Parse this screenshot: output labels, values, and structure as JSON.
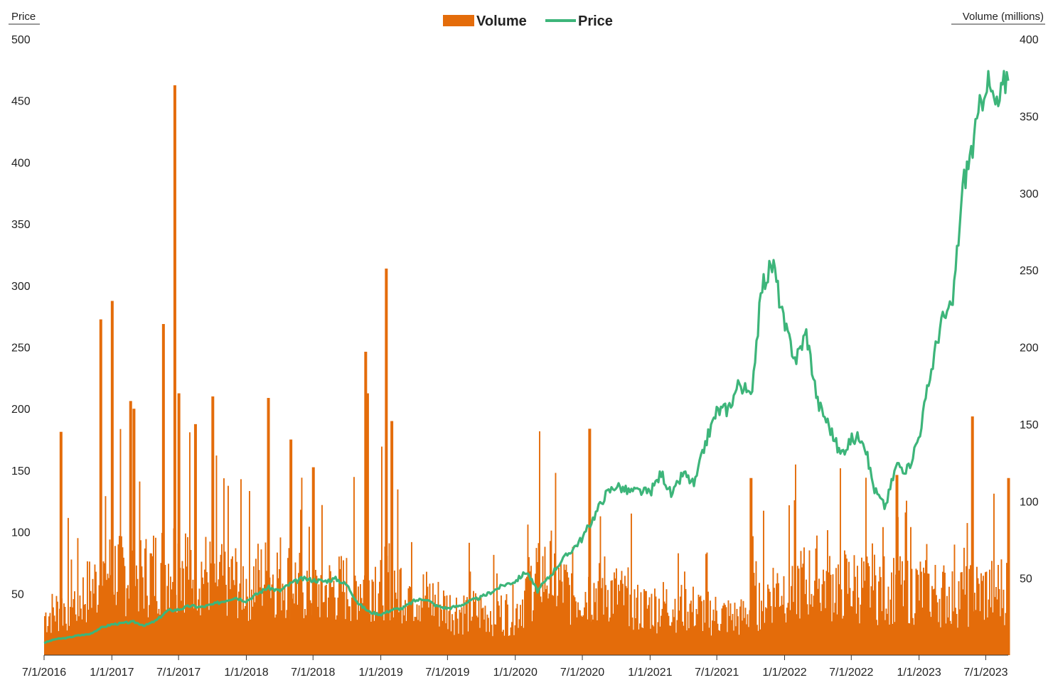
{
  "chart_data": {
    "type": "bar+line",
    "title": "",
    "legend": {
      "placement": "top-center",
      "entries": [
        {
          "name": "Volume",
          "color": "#e46c0a",
          "kind": "bar"
        },
        {
          "name": "Price",
          "color": "#3db57a",
          "kind": "line"
        }
      ]
    },
    "y_left": {
      "label": "Price",
      "ticks": [
        "50",
        "100",
        "150",
        "200",
        "250",
        "300",
        "350",
        "400",
        "450",
        "500"
      ],
      "range": [
        0,
        500
      ]
    },
    "y_right": {
      "label": "Volume (millions)",
      "ticks": [
        "50",
        "100",
        "150",
        "200",
        "250",
        "300",
        "350",
        "400"
      ],
      "range": [
        0,
        400
      ]
    },
    "x_axis": {
      "ticks": [
        "7/1/2016",
        "1/1/2017",
        "7/1/2017",
        "1/1/2018",
        "7/1/2018",
        "1/1/2019",
        "7/1/2019",
        "1/1/2020",
        "7/1/2020",
        "1/1/2021",
        "7/1/2021",
        "1/1/2022",
        "7/1/2022",
        "1/1/2023",
        "7/1/2023"
      ],
      "range": [
        "2016-07-01",
        "2023-08-31"
      ]
    },
    "grid": false,
    "series": [
      {
        "name": "Price",
        "axis": "left",
        "points": [
          [
            "2016-07-01",
            10
          ],
          [
            "2016-08-01",
            13
          ],
          [
            "2016-09-01",
            14
          ],
          [
            "2016-10-01",
            16
          ],
          [
            "2016-11-01",
            17
          ],
          [
            "2016-12-01",
            22
          ],
          [
            "2017-01-01",
            25
          ],
          [
            "2017-02-01",
            26
          ],
          [
            "2017-03-01",
            27
          ],
          [
            "2017-04-01",
            24
          ],
          [
            "2017-05-01",
            28
          ],
          [
            "2017-06-01",
            36
          ],
          [
            "2017-07-01",
            37
          ],
          [
            "2017-08-01",
            40
          ],
          [
            "2017-09-01",
            39
          ],
          [
            "2017-10-01",
            41
          ],
          [
            "2017-11-01",
            44
          ],
          [
            "2017-12-01",
            47
          ],
          [
            "2018-01-01",
            44
          ],
          [
            "2018-02-01",
            50
          ],
          [
            "2018-03-01",
            55
          ],
          [
            "2018-04-01",
            52
          ],
          [
            "2018-05-01",
            58
          ],
          [
            "2018-06-01",
            62
          ],
          [
            "2018-07-01",
            61
          ],
          [
            "2018-08-01",
            60
          ],
          [
            "2018-09-01",
            62
          ],
          [
            "2018-10-01",
            57
          ],
          [
            "2018-11-01",
            42
          ],
          [
            "2018-12-01",
            35
          ],
          [
            "2019-01-01",
            33
          ],
          [
            "2019-02-01",
            37
          ],
          [
            "2019-03-01",
            38
          ],
          [
            "2019-04-01",
            44
          ],
          [
            "2019-05-01",
            46
          ],
          [
            "2019-06-01",
            40
          ],
          [
            "2019-07-01",
            38
          ],
          [
            "2019-08-01",
            40
          ],
          [
            "2019-09-01",
            44
          ],
          [
            "2019-10-01",
            47
          ],
          [
            "2019-11-01",
            52
          ],
          [
            "2019-12-01",
            57
          ],
          [
            "2020-01-01",
            60
          ],
          [
            "2020-02-01",
            68
          ],
          [
            "2020-03-01",
            52
          ],
          [
            "2020-04-01",
            63
          ],
          [
            "2020-05-01",
            75
          ],
          [
            "2020-06-01",
            85
          ],
          [
            "2020-07-01",
            95
          ],
          [
            "2020-08-01",
            112
          ],
          [
            "2020-09-01",
            130
          ],
          [
            "2020-10-01",
            138
          ],
          [
            "2020-11-01",
            133
          ],
          [
            "2020-12-01",
            133
          ],
          [
            "2021-01-01",
            132
          ],
          [
            "2021-02-01",
            148
          ],
          [
            "2021-03-01",
            129
          ],
          [
            "2021-04-01",
            148
          ],
          [
            "2021-05-01",
            138
          ],
          [
            "2021-06-01",
            173
          ],
          [
            "2021-07-01",
            198
          ],
          [
            "2021-08-01",
            200
          ],
          [
            "2021-09-01",
            222
          ],
          [
            "2021-10-01",
            208
          ],
          [
            "2021-11-01",
            300
          ],
          [
            "2021-12-01",
            318
          ],
          [
            "2022-01-01",
            266
          ],
          [
            "2022-02-01",
            240
          ],
          [
            "2022-03-01",
            262
          ],
          [
            "2022-04-01",
            205
          ],
          [
            "2022-05-01",
            187
          ],
          [
            "2022-06-01",
            163
          ],
          [
            "2022-07-01",
            175
          ],
          [
            "2022-08-01",
            178
          ],
          [
            "2022-09-01",
            135
          ],
          [
            "2022-10-01",
            120
          ],
          [
            "2022-11-01",
            155
          ],
          [
            "2022-12-01",
            150
          ],
          [
            "2023-01-01",
            178
          ],
          [
            "2023-02-01",
            228
          ],
          [
            "2023-03-01",
            270
          ],
          [
            "2023-04-01",
            282
          ],
          [
            "2023-05-01",
            383
          ],
          [
            "2023-06-01",
            420
          ],
          [
            "2023-07-01",
            468
          ],
          [
            "2023-08-01",
            443
          ],
          [
            "2023-08-31",
            475
          ]
        ]
      },
      {
        "name": "Volume",
        "axis": "right",
        "unit": "millions",
        "spikes": [
          [
            "2016-08-15",
            145
          ],
          [
            "2016-12-01",
            218
          ],
          [
            "2017-01-01",
            230
          ],
          [
            "2017-02-20",
            165
          ],
          [
            "2017-03-01",
            160
          ],
          [
            "2017-05-20",
            215
          ],
          [
            "2017-06-20",
            370
          ],
          [
            "2017-07-01",
            170
          ],
          [
            "2017-08-15",
            150
          ],
          [
            "2017-10-01",
            168
          ],
          [
            "2018-03-01",
            167
          ],
          [
            "2018-05-01",
            140
          ],
          [
            "2018-07-01",
            122
          ],
          [
            "2018-11-20",
            197
          ],
          [
            "2018-11-25",
            170
          ],
          [
            "2019-01-15",
            251
          ],
          [
            "2019-01-30",
            152
          ],
          [
            "2020-07-20",
            147
          ],
          [
            "2021-10-01",
            115
          ],
          [
            "2022-11-01",
            117
          ],
          [
            "2023-05-25",
            155
          ],
          [
            "2023-08-31",
            115
          ]
        ],
        "monthly_typical": [
          [
            "2016-07-01",
            32
          ],
          [
            "2016-10-01",
            45
          ],
          [
            "2017-01-01",
            70
          ],
          [
            "2017-04-01",
            65
          ],
          [
            "2017-07-01",
            80
          ],
          [
            "2017-10-01",
            62
          ],
          [
            "2018-01-01",
            60
          ],
          [
            "2018-04-01",
            66
          ],
          [
            "2018-07-01",
            52
          ],
          [
            "2018-10-01",
            55
          ],
          [
            "2019-01-01",
            65
          ],
          [
            "2019-04-01",
            52
          ],
          [
            "2019-07-01",
            38
          ],
          [
            "2019-10-01",
            35
          ],
          [
            "2020-01-01",
            35
          ],
          [
            "2020-03-01",
            70
          ],
          [
            "2020-06-01",
            50
          ],
          [
            "2020-09-01",
            55
          ],
          [
            "2020-12-01",
            38
          ],
          [
            "2021-03-01",
            42
          ],
          [
            "2021-06-01",
            35
          ],
          [
            "2021-09-01",
            30
          ],
          [
            "2021-12-01",
            55
          ],
          [
            "2022-03-01",
            60
          ],
          [
            "2022-06-01",
            58
          ],
          [
            "2022-09-01",
            55
          ],
          [
            "2022-12-01",
            55
          ],
          [
            "2023-03-01",
            50
          ],
          [
            "2023-06-01",
            50
          ],
          [
            "2023-08-31",
            55
          ]
        ]
      }
    ]
  }
}
